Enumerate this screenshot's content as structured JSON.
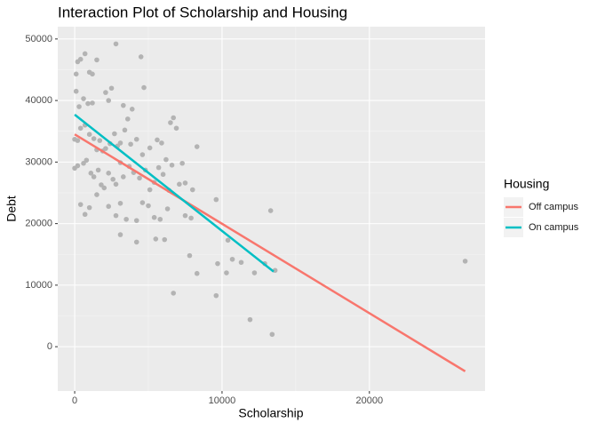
{
  "chart_data": {
    "type": "scatter",
    "title": "Interaction Plot of Scholarship and Housing",
    "x_label": "Scholarship",
    "y_label": "Debt",
    "xlim": [
      -1150,
      27850
    ],
    "ylim": [
      -7200,
      52000
    ],
    "xticks": [
      0,
      10000,
      20000
    ],
    "yticks": [
      0,
      10000,
      20000,
      30000,
      40000,
      50000
    ],
    "grid": true,
    "points": {
      "color": "#b3b3b3",
      "x": [
        100,
        200,
        100,
        400,
        700,
        1000,
        1200,
        1500,
        2800,
        4500,
        4700,
        300,
        600,
        900,
        1200,
        2100,
        2500,
        2300,
        3300,
        3900,
        3600,
        6700,
        6900,
        6500,
        0,
        200,
        400,
        700,
        1000,
        1300,
        1500,
        1700,
        1900,
        2100,
        2400,
        2700,
        2900,
        3100,
        3400,
        3800,
        4200,
        4600,
        5100,
        5600,
        5900,
        6200,
        6600,
        7300,
        8300,
        0,
        200,
        600,
        800,
        1100,
        1300,
        1600,
        1800,
        2000,
        2300,
        2600,
        2800,
        3100,
        3300,
        3700,
        4000,
        4400,
        4800,
        5100,
        5400,
        5700,
        6000,
        6400,
        7100,
        7500,
        8000,
        400,
        700,
        1000,
        1500,
        2300,
        2800,
        3100,
        3500,
        4200,
        4600,
        5000,
        5400,
        5800,
        6300,
        7500,
        7900,
        3100,
        4200,
        5500,
        6100,
        7800,
        8300,
        9600,
        9700,
        10400,
        10700,
        11300,
        12200,
        13300,
        13600,
        9600,
        6700,
        11900,
        13400,
        26500,
        10300,
        12900
      ],
      "values": [
        44300,
        46300,
        41500,
        46700,
        47600,
        44600,
        44300,
        46600,
        49200,
        47100,
        42100,
        39000,
        40300,
        39500,
        39600,
        41300,
        42000,
        40000,
        39200,
        38600,
        37000,
        37200,
        35500,
        36400,
        33700,
        33500,
        35500,
        36000,
        34500,
        33800,
        32000,
        33500,
        31800,
        32200,
        33000,
        34600,
        32600,
        33100,
        35200,
        32900,
        33700,
        31200,
        32300,
        33600,
        33100,
        30400,
        29500,
        29800,
        32500,
        29000,
        29400,
        29800,
        30300,
        28200,
        27600,
        28700,
        26300,
        25800,
        28200,
        27200,
        26400,
        29900,
        27600,
        29300,
        28300,
        27400,
        28700,
        25500,
        26700,
        29100,
        28000,
        25400,
        26400,
        26600,
        25500,
        23100,
        21500,
        22600,
        24700,
        22800,
        21300,
        23300,
        20700,
        20500,
        23400,
        22900,
        21000,
        20700,
        22400,
        21300,
        20900,
        18200,
        17000,
        17500,
        17400,
        14800,
        11900,
        23900,
        13500,
        17300,
        14200,
        13700,
        12000,
        22100,
        12400,
        8300,
        8700,
        4400,
        2000,
        13900,
        12000,
        13500
      ]
    },
    "legend_title": "Housing",
    "series": [
      {
        "name": "Off campus",
        "color": "#F8766D",
        "x": [
          0,
          26500
        ],
        "values": [
          34500,
          -4000
        ]
      },
      {
        "name": "On campus",
        "color": "#00BFC4",
        "x": [
          0,
          13500
        ],
        "values": [
          37700,
          12200
        ]
      }
    ]
  }
}
